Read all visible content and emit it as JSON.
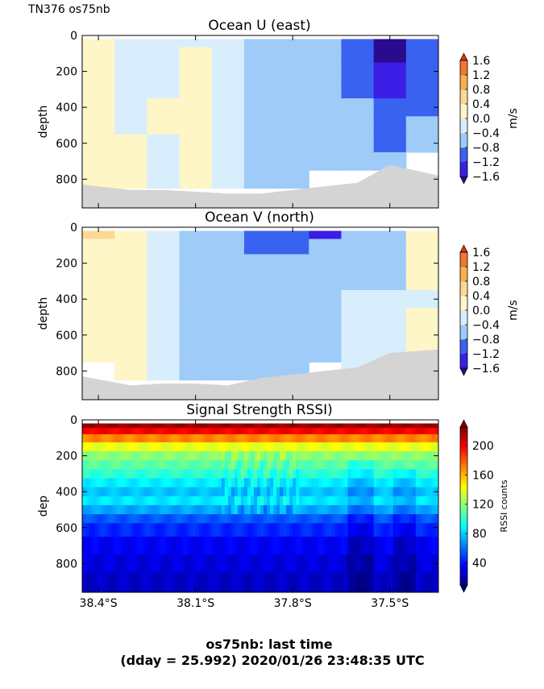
{
  "figure": {
    "corner_label": "TN376 os75nb",
    "footer_line1": "os75nb: last time",
    "footer_line2": "(dday = 25.992) 2020/01/26 23:48:35 UTC"
  },
  "colors": {
    "bottom_mask": "#d4d4d4",
    "velocity_levels": [
      "#2a0a8f",
      "#3a1ee6",
      "#3a62f0",
      "#9fcbf8",
      "#d8eefc",
      "#fff6c8",
      "#fcd894",
      "#f7b14d",
      "#f0772d",
      "#d7301a"
    ],
    "rssi_colormap": "jet"
  },
  "icons": {
    "colorbar_extend": "triangle-arrow-icon"
  },
  "chart_data": [
    {
      "type": "heatmap",
      "title": "Ocean U (east)",
      "ylabel": "depth",
      "ylim": [
        960,
        0
      ],
      "yticks": [
        "0",
        "200",
        "400",
        "600",
        "800"
      ],
      "xlim": [
        -38.45,
        -37.35
      ],
      "x_shared_with_bottom_panel": true,
      "colorbar": {
        "label": "m/s",
        "ticks": [
          "1.6",
          "1.2",
          "0.8",
          "0.4",
          "0.0",
          "−0.4",
          "−0.8",
          "−1.2",
          "−1.6"
        ],
        "levels": [
          -2.0,
          -1.6,
          -1.2,
          -0.8,
          -0.4,
          0.0,
          0.4,
          0.8,
          1.2,
          1.6,
          2.0
        ],
        "extend": "both"
      },
      "x": [
        -38.4,
        -38.3,
        -38.2,
        -38.1,
        -38.0,
        -37.9,
        -37.8,
        -37.7,
        -37.6,
        -37.5,
        -37.4
      ],
      "depth": [
        30,
        100,
        200,
        300,
        400,
        500,
        600,
        700,
        800,
        900
      ],
      "z": [
        [
          0.1,
          -0.2,
          -0.2,
          -0.1,
          -0.2,
          -0.5,
          -0.6,
          -0.6,
          -1.0,
          -1.7,
          -1.2
        ],
        [
          0.1,
          -0.2,
          -0.2,
          0.1,
          -0.2,
          -0.5,
          -0.6,
          -0.7,
          -1.0,
          -1.7,
          -1.1
        ],
        [
          0.1,
          -0.2,
          -0.2,
          0.1,
          -0.2,
          -0.5,
          -0.6,
          -0.6,
          -0.9,
          -1.4,
          -1.0
        ],
        [
          0.1,
          -0.2,
          -0.2,
          0.1,
          -0.2,
          -0.5,
          -0.6,
          -0.6,
          -0.9,
          -1.3,
          -1.0
        ],
        [
          0.1,
          -0.2,
          0.1,
          0.1,
          -0.2,
          -0.5,
          -0.6,
          -0.6,
          -0.8,
          -1.2,
          -0.9
        ],
        [
          0.1,
          -0.2,
          0.1,
          0.1,
          -0.2,
          -0.5,
          -0.6,
          -0.6,
          -0.7,
          -1.1,
          -0.8
        ],
        [
          0.1,
          0.1,
          -0.2,
          0.1,
          -0.2,
          -0.5,
          -0.5,
          -0.6,
          -0.7,
          -1.0,
          -0.7
        ],
        [
          0.1,
          0.1,
          -0.2,
          0.1,
          -0.2,
          -0.5,
          -0.5,
          -0.6,
          -0.6,
          -0.7,
          null
        ],
        [
          0.1,
          0.1,
          -0.2,
          0.1,
          -0.2,
          -0.5,
          -0.5,
          null,
          null,
          null,
          null
        ],
        [
          null,
          null,
          null,
          null,
          null,
          null,
          null,
          null,
          null,
          null,
          null
        ]
      ],
      "bottom_depth": [
        830,
        860,
        860,
        870,
        880,
        880,
        860,
        840,
        820,
        720,
        780
      ]
    },
    {
      "type": "heatmap",
      "title": "Ocean V (north)",
      "ylabel": "depth",
      "ylim": [
        960,
        0
      ],
      "yticks": [
        "0",
        "200",
        "400",
        "600",
        "800"
      ],
      "xlim": [
        -38.45,
        -37.35
      ],
      "x_shared_with_bottom_panel": true,
      "colorbar": {
        "label": "m/s",
        "ticks": [
          "1.6",
          "1.2",
          "0.8",
          "0.4",
          "0.0",
          "−0.4",
          "−0.8",
          "−1.2",
          "−1.6"
        ],
        "levels": [
          -2.0,
          -1.6,
          -1.2,
          -0.8,
          -0.4,
          0.0,
          0.4,
          0.8,
          1.2,
          1.6,
          2.0
        ],
        "extend": "both"
      },
      "x": [
        -38.4,
        -38.3,
        -38.2,
        -38.1,
        -38.0,
        -37.9,
        -37.8,
        -37.7,
        -37.6,
        -37.5,
        -37.4
      ],
      "depth": [
        30,
        100,
        200,
        300,
        400,
        500,
        600,
        700,
        800,
        900
      ],
      "z": [
        [
          0.5,
          0.1,
          -0.2,
          -0.5,
          -0.8,
          -0.9,
          -0.9,
          -1.3,
          -0.8,
          -0.5,
          0.1
        ],
        [
          0.1,
          0.1,
          -0.2,
          -0.6,
          -0.6,
          -0.9,
          -0.9,
          -0.7,
          -0.6,
          -0.5,
          0.1
        ],
        [
          0.1,
          0.1,
          -0.2,
          -0.6,
          -0.6,
          -0.6,
          -0.6,
          -0.6,
          -0.6,
          -0.5,
          0.1
        ],
        [
          0.1,
          0.1,
          -0.2,
          -0.6,
          -0.6,
          -0.6,
          -0.6,
          -0.6,
          -0.6,
          -0.5,
          0.1
        ],
        [
          0.1,
          0.1,
          -0.2,
          -0.6,
          -0.6,
          -0.6,
          -0.6,
          -0.6,
          -0.3,
          -0.3,
          -0.2
        ],
        [
          0.1,
          0.1,
          -0.2,
          -0.6,
          -0.6,
          -0.6,
          -0.6,
          -0.6,
          -0.3,
          -0.3,
          0.1
        ],
        [
          0.1,
          0.1,
          -0.2,
          -0.6,
          -0.6,
          -0.6,
          -0.6,
          -0.6,
          -0.3,
          -0.3,
          0.1
        ],
        [
          0.1,
          0.1,
          -0.2,
          -0.6,
          -0.6,
          -0.6,
          -0.5,
          -0.6,
          -0.3,
          -0.3,
          0.1
        ],
        [
          null,
          0.1,
          -0.2,
          -0.6,
          -0.6,
          -0.6,
          -0.5,
          null,
          -0.3,
          null,
          null
        ],
        [
          null,
          null,
          null,
          null,
          null,
          null,
          null,
          null,
          null,
          null,
          null
        ]
      ],
      "bottom_depth": [
        830,
        880,
        870,
        870,
        880,
        840,
        820,
        800,
        780,
        700,
        680
      ]
    },
    {
      "type": "heatmap",
      "title": "Signal Strength RSSI)",
      "ylabel": "dep",
      "ylim": [
        960,
        0
      ],
      "yticks": [
        "0",
        "200",
        "400",
        "600",
        "800"
      ],
      "xlim": [
        -38.45,
        -37.35
      ],
      "xticks": [
        "38.4°S",
        "38.1°S",
        "37.8°S",
        "37.5°S"
      ],
      "xtick_values": [
        -38.4,
        -38.1,
        -37.8,
        -37.5
      ],
      "colorbar": {
        "label": "RSSI counts",
        "ticks": [
          "200",
          "160",
          "120",
          "80",
          "40"
        ],
        "range": [
          10,
          225
        ],
        "extend": "both"
      },
      "depth": [
        30,
        60,
        100,
        150,
        200,
        250,
        300,
        350,
        400,
        450,
        500,
        550,
        600,
        700,
        800,
        900
      ],
      "z_profile": [
        220,
        200,
        170,
        140,
        120,
        110,
        100,
        88,
        78,
        86,
        72,
        55,
        45,
        35,
        30,
        25
      ],
      "note_variability": "mid-track band near -38.0 to -37.8 and darker columns near -37.45"
    }
  ]
}
